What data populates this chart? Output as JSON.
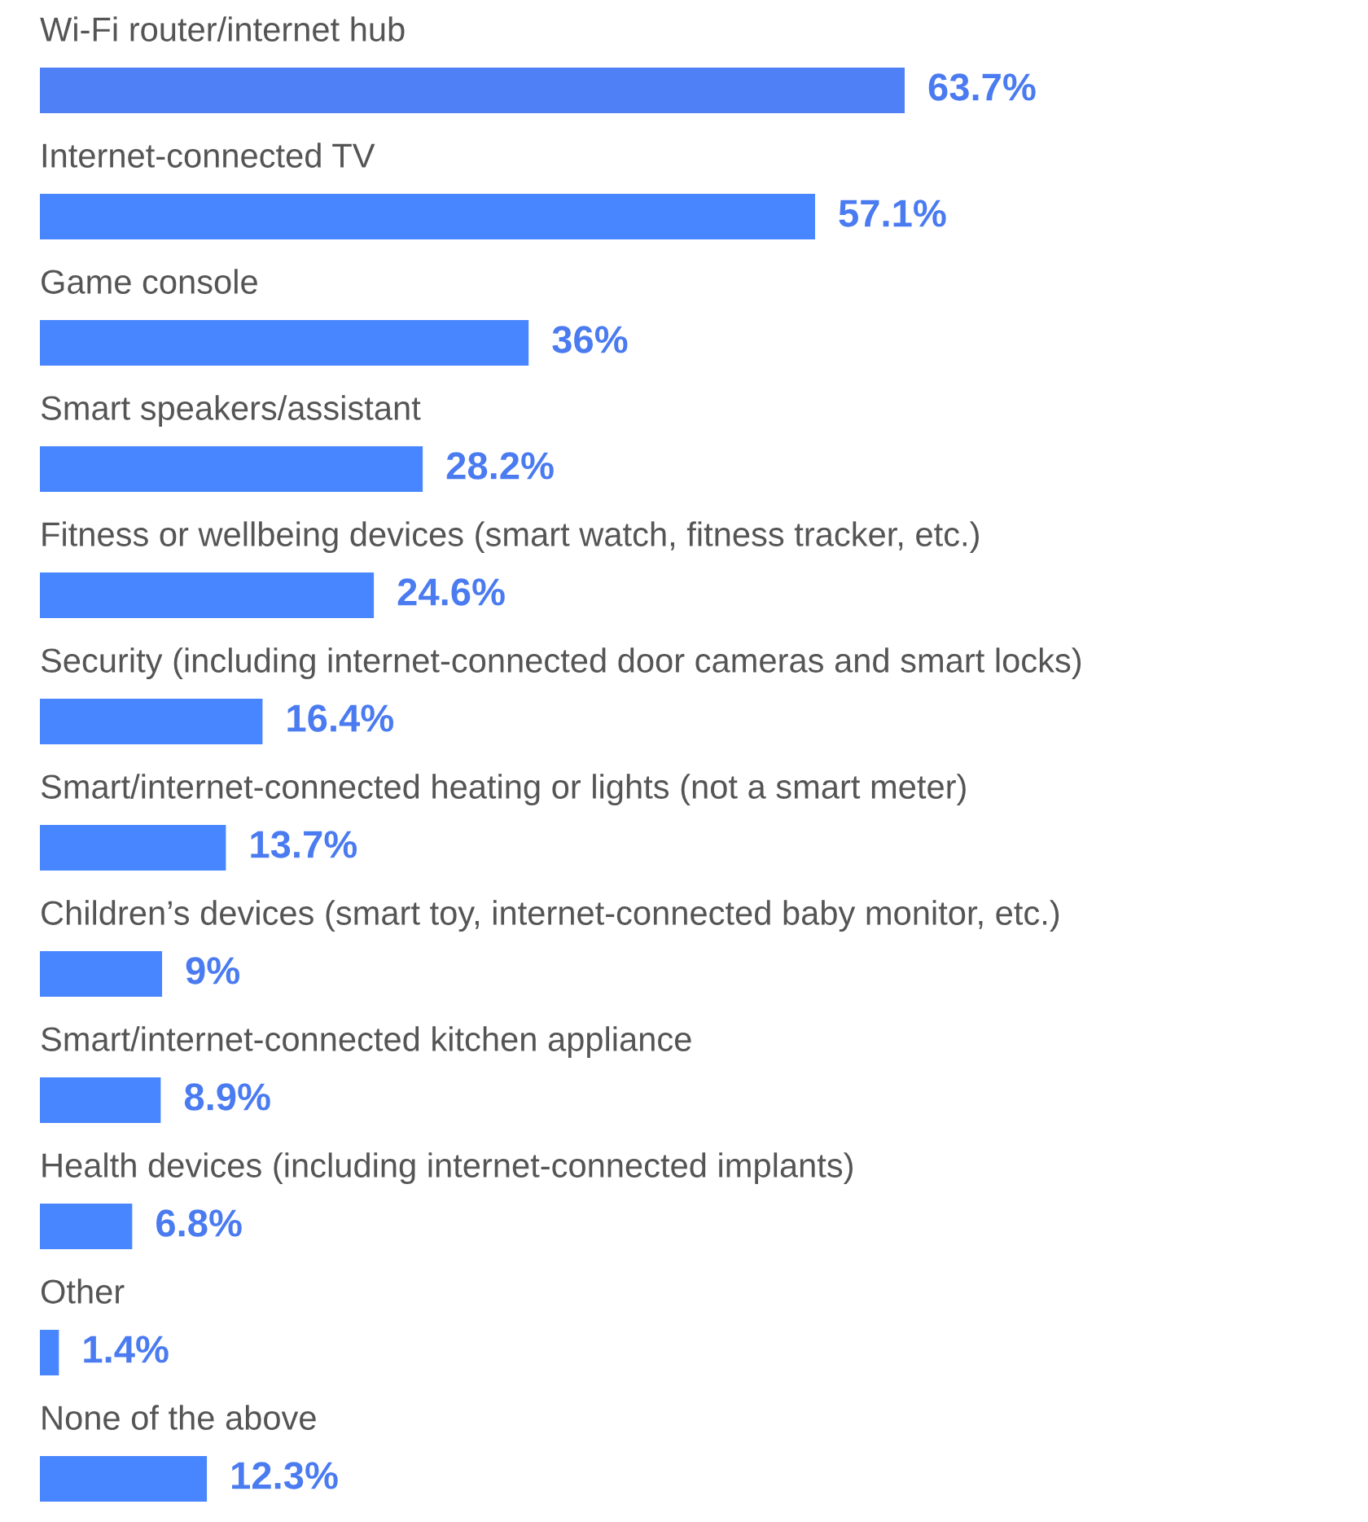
{
  "chart_data": {
    "type": "bar",
    "orientation": "horizontal",
    "data_labels": true,
    "categories": [
      "Wi-Fi router/internet hub",
      "Internet-connected TV",
      "Game console",
      "Smart speakers/assistant",
      "Fitness or wellbeing devices (smart watch, fitness tracker, etc.)",
      "Security (including internet-connected door cameras and smart locks)",
      "Smart/internet-connected heating or lights (not a smart meter)",
      "Children’s devices (smart toy, internet-connected baby monitor, etc.)",
      "Smart/internet-connected kitchen appliance",
      "Health devices (including internet-connected implants)",
      "Other",
      "None of the above"
    ],
    "values": [
      63.7,
      57.1,
      36,
      28.2,
      24.6,
      16.4,
      13.7,
      9,
      8.9,
      6.8,
      1.4,
      12.3
    ],
    "value_labels": [
      "63.7%",
      "57.1%",
      "36%",
      "28.2%",
      "24.6%",
      "16.4%",
      "13.7%",
      "9%",
      "8.9%",
      "6.8%",
      "1.4%",
      "12.3%"
    ],
    "colors": [
      "#5080f5",
      "#4886ff",
      "#4886ff",
      "#4886ff",
      "#4886ff",
      "#4886ff",
      "#4886ff",
      "#4886ff",
      "#4886ff",
      "#4886ff",
      "#4886ff",
      "#4886ff"
    ]
  }
}
